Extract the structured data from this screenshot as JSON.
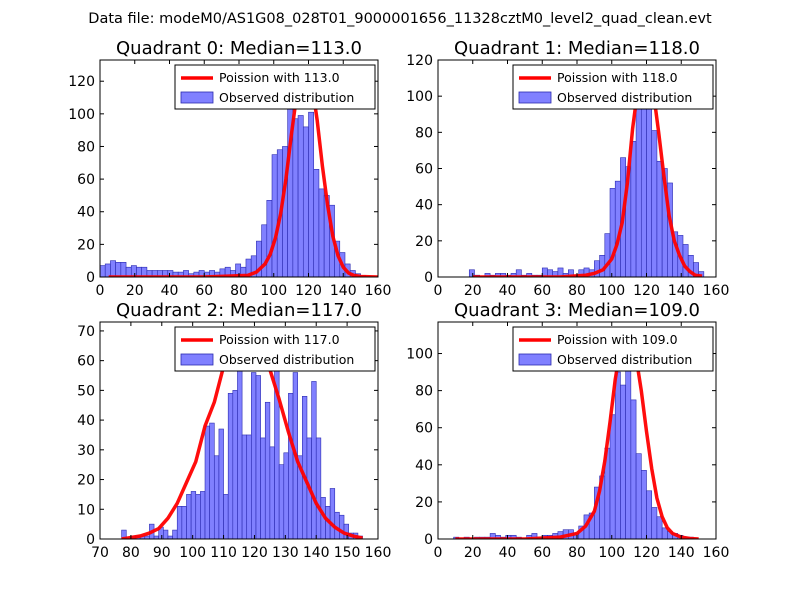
{
  "suptitle": "Data file: modeM0/AS1G08_028T01_9000001656_11328cztM0_level2_quad_clean.evt",
  "colors": {
    "bar": "#8080ff",
    "bar_edge": "#2a2ab0",
    "poisson": "#ff0000",
    "axes": "#000000"
  },
  "chart_data": [
    {
      "type": "bar",
      "title": "Quadrant 0: Median=113.0",
      "xlim": [
        0,
        160
      ],
      "ylim": [
        0,
        133
      ],
      "xticks": [
        0,
        20,
        40,
        60,
        80,
        100,
        120,
        140,
        160
      ],
      "yticks": [
        0,
        20,
        40,
        60,
        80,
        100,
        120
      ],
      "median": 113.0,
      "legend": {
        "placement": "upper-right",
        "line_label": "Poission with 113.0",
        "bar_label": "Observed distribution"
      },
      "bin_width": 3.0,
      "bins_start": [
        0,
        3,
        6,
        9,
        12,
        15,
        18,
        21,
        24,
        27,
        30,
        33,
        36,
        39,
        42,
        45,
        48,
        51,
        54,
        57,
        60,
        63,
        66,
        69,
        72,
        75,
        78,
        81,
        84,
        87,
        90,
        93,
        96,
        99,
        102,
        105,
        108,
        111,
        114,
        117,
        120,
        123,
        126,
        129,
        132,
        135,
        138,
        141,
        144,
        147,
        150,
        153
      ],
      "counts": [
        7,
        8,
        10,
        9,
        9,
        6,
        7,
        6,
        6,
        4,
        4,
        4,
        4,
        4,
        3,
        3,
        4,
        2,
        3,
        4,
        3,
        4,
        3,
        5,
        6,
        4,
        8,
        6,
        11,
        13,
        22,
        32,
        47,
        75,
        78,
        80,
        118,
        97,
        99,
        92,
        101,
        66,
        54,
        50,
        44,
        22,
        15,
        8,
        4,
        2,
        1,
        0
      ],
      "poisson_x": [
        5,
        60,
        85,
        90,
        95,
        98,
        101,
        104,
        107,
        110,
        113,
        116,
        119,
        122,
        125,
        128,
        131,
        134,
        137,
        140,
        143,
        146,
        150,
        160
      ],
      "poisson_y": [
        0,
        0,
        1,
        3,
        8,
        14,
        24,
        39,
        60,
        86,
        110,
        124,
        127,
        118,
        96,
        68,
        44,
        25,
        13,
        6,
        2.5,
        1,
        0.3,
        0
      ]
    },
    {
      "type": "bar",
      "title": "Quadrant 1: Median=118.0",
      "xlim": [
        0,
        160
      ],
      "ylim": [
        0,
        120
      ],
      "xticks": [
        0,
        20,
        40,
        60,
        80,
        100,
        120,
        140,
        160
      ],
      "yticks": [
        0,
        20,
        40,
        60,
        80,
        100,
        120
      ],
      "median": 118.0,
      "legend": {
        "placement": "upper-right",
        "line_label": "Poission with 118.0",
        "bar_label": "Observed distribution"
      },
      "bin_width": 3.0,
      "bins_start": [
        18,
        21,
        24,
        27,
        30,
        33,
        36,
        39,
        42,
        45,
        48,
        51,
        54,
        57,
        60,
        63,
        66,
        69,
        72,
        75,
        78,
        81,
        84,
        87,
        90,
        93,
        96,
        99,
        102,
        105,
        108,
        111,
        114,
        117,
        120,
        123,
        126,
        129,
        132,
        135,
        138,
        141,
        144,
        147,
        150
      ],
      "counts": [
        4,
        1,
        0,
        2,
        1,
        2,
        2,
        1,
        2,
        4,
        1,
        2,
        1,
        1,
        5,
        4,
        3,
        5,
        2,
        4,
        1,
        4,
        5,
        4,
        9,
        12,
        24,
        49,
        53,
        66,
        61,
        75,
        98,
        110,
        101,
        81,
        64,
        60,
        52,
        25,
        23,
        18,
        12,
        8,
        3
      ],
      "poisson_x": [
        20,
        70,
        85,
        90,
        95,
        100,
        103,
        106,
        109,
        112,
        115,
        118,
        121,
        124,
        127,
        130,
        133,
        136,
        139,
        142,
        145,
        148,
        152
      ],
      "poisson_y": [
        0,
        0,
        1,
        2,
        4,
        10,
        18,
        30,
        52,
        82,
        104,
        116,
        112,
        102,
        80,
        56,
        34,
        20,
        12,
        6,
        3,
        1,
        0.5
      ]
    },
    {
      "type": "bar",
      "title": "Quadrant 2: Median=117.0",
      "xlim": [
        70,
        160
      ],
      "ylim": [
        0,
        73
      ],
      "xticks": [
        70,
        80,
        90,
        100,
        110,
        120,
        130,
        140,
        150,
        160
      ],
      "yticks": [
        0,
        10,
        20,
        30,
        40,
        50,
        60,
        70
      ],
      "median": 117.0,
      "legend": {
        "placement": "upper-right",
        "line_label": "Poission with 117.0",
        "bar_label": "Observed distribution"
      },
      "bin_width": 1.5,
      "bins_start": [
        77,
        78.5,
        80,
        81.5,
        83,
        84.5,
        86,
        87.5,
        89,
        90.5,
        92,
        93.5,
        95,
        96.5,
        98,
        99.5,
        101,
        102.5,
        104,
        105.5,
        107,
        108.5,
        110,
        111.5,
        113,
        114.5,
        116,
        117.5,
        119,
        120.5,
        122,
        123.5,
        125,
        126.5,
        128,
        129.5,
        131,
        132.5,
        134,
        135.5,
        137,
        138.5,
        140,
        141.5,
        143,
        144.5,
        146,
        147.5,
        149,
        150.5,
        152,
        153.5
      ],
      "counts": [
        3,
        0,
        1,
        1,
        1,
        1,
        5,
        1,
        4,
        3,
        1,
        3,
        11,
        11,
        15,
        16,
        15,
        16,
        38,
        39,
        28,
        37,
        15,
        49,
        50,
        71,
        35,
        35,
        56,
        55,
        34,
        46,
        31,
        70,
        25,
        29,
        49,
        56,
        28,
        48,
        34,
        53,
        34,
        14,
        11,
        17,
        9,
        8,
        5,
        2,
        2,
        1
      ],
      "poisson_x": [
        77,
        83,
        86,
        89,
        92,
        95,
        98,
        101,
        104,
        107,
        110,
        113,
        116,
        119,
        122,
        125,
        128,
        131,
        134,
        137,
        140,
        143,
        146,
        149,
        152,
        155
      ],
      "poisson_y": [
        0,
        1,
        2,
        3.5,
        7,
        12,
        19,
        26,
        38,
        46,
        58,
        65,
        70,
        70,
        66,
        57,
        47,
        36,
        26,
        19,
        12,
        7,
        4,
        2,
        1,
        0.3
      ]
    },
    {
      "type": "bar",
      "title": "Quadrant 3: Median=109.0",
      "xlim": [
        0,
        160
      ],
      "ylim": [
        0,
        117
      ],
      "xticks": [
        0,
        20,
        40,
        60,
        80,
        100,
        120,
        140,
        160
      ],
      "yticks": [
        0,
        20,
        40,
        60,
        80,
        100
      ],
      "median": 109.0,
      "legend": {
        "placement": "upper-right",
        "line_label": "Poission with 109.0",
        "bar_label": "Observed distribution"
      },
      "bin_width": 3.0,
      "bins_start": [
        9,
        12,
        15,
        18,
        21,
        24,
        27,
        30,
        33,
        36,
        39,
        42,
        45,
        48,
        51,
        54,
        57,
        60,
        63,
        66,
        69,
        72,
        75,
        78,
        81,
        84,
        87,
        90,
        93,
        96,
        99,
        102,
        105,
        108,
        111,
        114,
        117,
        120,
        123,
        126,
        129,
        132,
        135,
        138,
        141,
        144
      ],
      "counts": [
        1,
        0,
        1,
        0,
        1,
        1,
        1,
        3,
        2,
        1,
        2,
        2,
        1,
        0,
        2,
        3,
        1,
        2,
        2,
        3,
        4,
        5,
        5,
        3,
        7,
        13,
        14,
        28,
        34,
        49,
        67,
        90,
        83,
        102,
        75,
        46,
        37,
        26,
        17,
        12,
        6,
        4,
        3,
        2,
        1,
        1
      ],
      "poisson_x": [
        10,
        50,
        70,
        80,
        85,
        90,
        93,
        96,
        99,
        102,
        105,
        108,
        111,
        114,
        117,
        120,
        123,
        126,
        129,
        132,
        135,
        140,
        145,
        150
      ],
      "poisson_y": [
        0,
        0,
        1,
        3,
        7,
        15,
        26,
        42,
        63,
        86,
        103,
        112,
        110,
        98,
        80,
        58,
        38,
        22,
        12,
        6,
        3,
        1,
        0.3,
        0
      ]
    }
  ]
}
